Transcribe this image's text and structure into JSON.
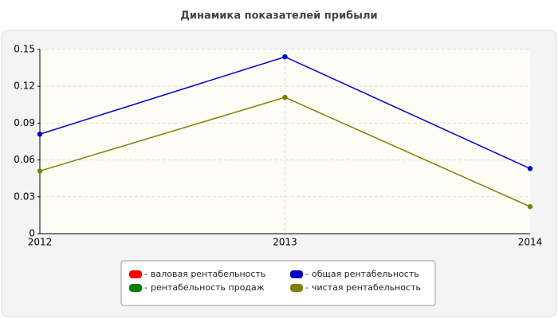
{
  "chart_data": {
    "type": "line",
    "title": "Динамика показателей прибыли",
    "categories": [
      "2012",
      "2013",
      "2014"
    ],
    "series": [
      {
        "name": "валовая рентабельность",
        "color": "#ff0000",
        "values": [
          null,
          null,
          null
        ]
      },
      {
        "name": "рентабельность продаж",
        "color": "#008000",
        "values": [
          null,
          null,
          null
        ]
      },
      {
        "name": "общая рентабельность",
        "color": "#0000cc",
        "values": [
          0.081,
          0.144,
          0.053
        ]
      },
      {
        "name": "чистая рентабельность",
        "color": "#808000",
        "values": [
          0.051,
          0.111,
          0.022
        ]
      }
    ],
    "ylim": [
      0,
      0.15
    ],
    "yticks": [
      0,
      0.03,
      0.06,
      0.09,
      0.12,
      0.15
    ],
    "grid": true
  }
}
